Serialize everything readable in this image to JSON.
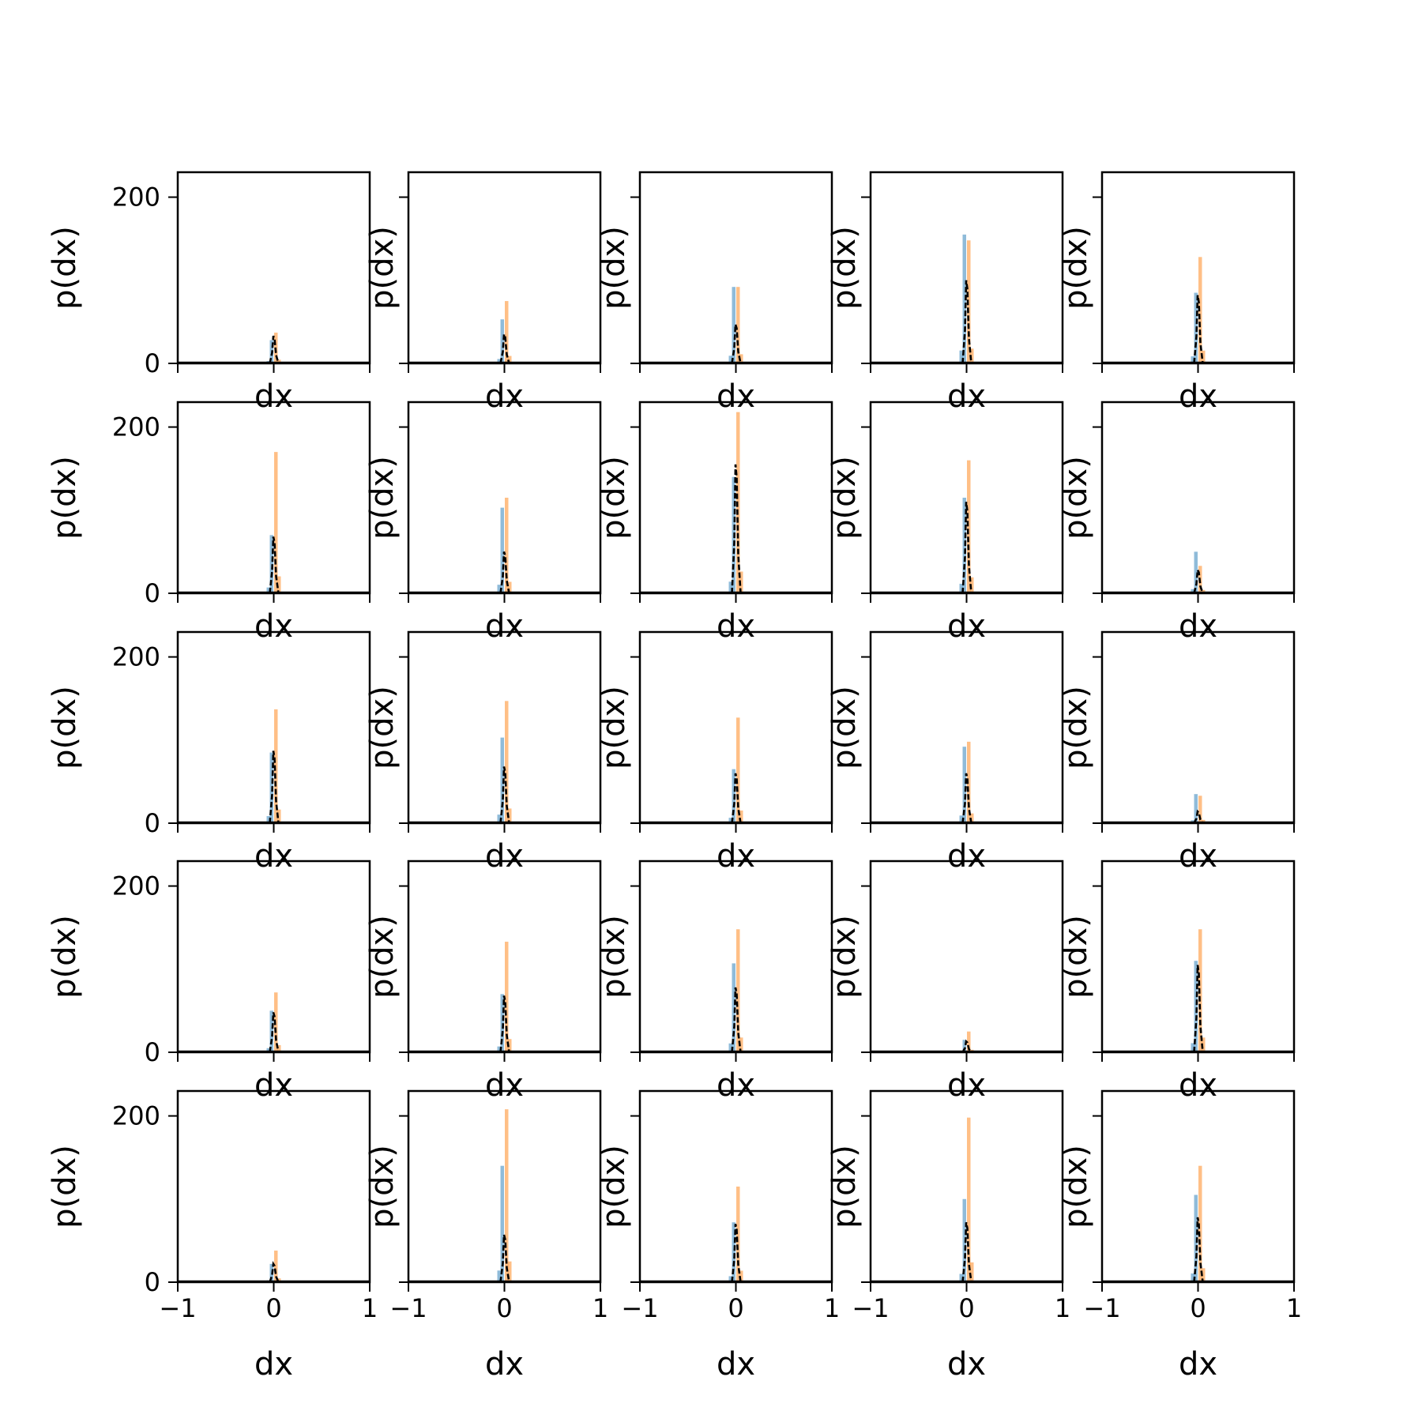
{
  "figure": {
    "grid_rows": 5,
    "grid_cols": 5,
    "sharex": true,
    "sharey": true
  },
  "axes_common": {
    "xlabel": "dx",
    "ylabel": "p(dx)",
    "xlim": [
      -1,
      1
    ],
    "ylim": [
      0,
      230
    ],
    "xticks": [
      -1,
      0,
      1
    ],
    "xtick_labels": [
      "−1",
      "0",
      "1"
    ],
    "yticks": [
      0,
      200
    ],
    "ytick_labels": [
      "0",
      "200"
    ]
  },
  "colors": {
    "blue_hist": "#1f77b4",
    "orange_hist": "#ff7f0e",
    "fit_line": "#000000",
    "axes": "#000000",
    "background": "#ffffff"
  },
  "chart_data": [
    {
      "type": "histogram",
      "row": 0,
      "col": 0,
      "peaks": {
        "blue": 28,
        "orange": 37,
        "black": 33
      }
    },
    {
      "type": "histogram",
      "row": 0,
      "col": 1,
      "peaks": {
        "blue": 53,
        "orange": 75,
        "black": 35
      }
    },
    {
      "type": "histogram",
      "row": 0,
      "col": 2,
      "peaks": {
        "blue": 92,
        "orange": 92,
        "black": 47
      }
    },
    {
      "type": "histogram",
      "row": 0,
      "col": 3,
      "peaks": {
        "blue": 155,
        "orange": 148,
        "black": 100
      }
    },
    {
      "type": "histogram",
      "row": 0,
      "col": 4,
      "peaks": {
        "blue": 85,
        "orange": 128,
        "black": 82
      }
    },
    {
      "type": "histogram",
      "row": 1,
      "col": 0,
      "peaks": {
        "blue": 70,
        "orange": 170,
        "black": 68
      }
    },
    {
      "type": "histogram",
      "row": 1,
      "col": 1,
      "peaks": {
        "blue": 103,
        "orange": 115,
        "black": 50
      }
    },
    {
      "type": "histogram",
      "row": 1,
      "col": 2,
      "peaks": {
        "blue": 140,
        "orange": 218,
        "black": 155
      }
    },
    {
      "type": "histogram",
      "row": 1,
      "col": 3,
      "peaks": {
        "blue": 115,
        "orange": 160,
        "black": 110
      }
    },
    {
      "type": "histogram",
      "row": 1,
      "col": 4,
      "peaks": {
        "blue": 50,
        "orange": 33,
        "black": 28
      }
    },
    {
      "type": "histogram",
      "row": 2,
      "col": 0,
      "peaks": {
        "blue": 85,
        "orange": 137,
        "black": 87
      }
    },
    {
      "type": "histogram",
      "row": 2,
      "col": 1,
      "peaks": {
        "blue": 103,
        "orange": 147,
        "black": 68
      }
    },
    {
      "type": "histogram",
      "row": 2,
      "col": 2,
      "peaks": {
        "blue": 65,
        "orange": 127,
        "black": 60
      }
    },
    {
      "type": "histogram",
      "row": 2,
      "col": 3,
      "peaks": {
        "blue": 92,
        "orange": 98,
        "black": 60
      }
    },
    {
      "type": "histogram",
      "row": 2,
      "col": 4,
      "peaks": {
        "blue": 35,
        "orange": 33,
        "black": 14
      }
    },
    {
      "type": "histogram",
      "row": 3,
      "col": 0,
      "peaks": {
        "blue": 50,
        "orange": 72,
        "black": 48
      }
    },
    {
      "type": "histogram",
      "row": 3,
      "col": 1,
      "peaks": {
        "blue": 70,
        "orange": 133,
        "black": 68
      }
    },
    {
      "type": "histogram",
      "row": 3,
      "col": 2,
      "peaks": {
        "blue": 107,
        "orange": 148,
        "black": 78
      }
    },
    {
      "type": "histogram",
      "row": 3,
      "col": 3,
      "peaks": {
        "blue": 15,
        "orange": 25,
        "black": 13
      }
    },
    {
      "type": "histogram",
      "row": 3,
      "col": 4,
      "peaks": {
        "blue": 110,
        "orange": 148,
        "black": 105
      }
    },
    {
      "type": "histogram",
      "row": 4,
      "col": 0,
      "peaks": {
        "blue": 22,
        "orange": 38,
        "black": 22
      }
    },
    {
      "type": "histogram",
      "row": 4,
      "col": 1,
      "peaks": {
        "blue": 140,
        "orange": 208,
        "black": 57
      }
    },
    {
      "type": "histogram",
      "row": 4,
      "col": 2,
      "peaks": {
        "blue": 72,
        "orange": 115,
        "black": 70
      }
    },
    {
      "type": "histogram",
      "row": 4,
      "col": 3,
      "peaks": {
        "blue": 100,
        "orange": 198,
        "black": 72
      }
    },
    {
      "type": "histogram",
      "row": 4,
      "col": 4,
      "peaks": {
        "blue": 105,
        "orange": 140,
        "black": 78
      }
    }
  ]
}
